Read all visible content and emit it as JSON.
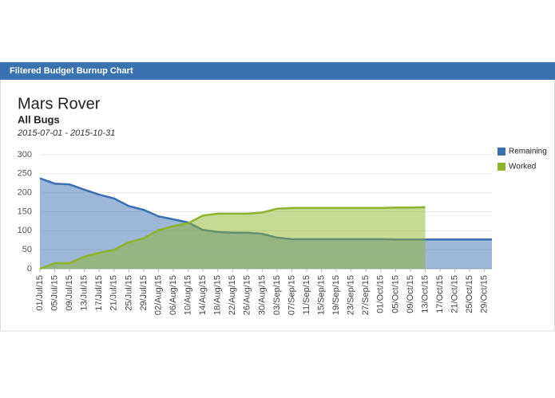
{
  "header": {
    "title": "Filtered Budget Burnup Chart"
  },
  "chart_data": {
    "type": "area",
    "title": "Mars Rover",
    "subtitle": "All Bugs",
    "date_range": "2015-07-01 - 2015-10-31",
    "x": [
      "2015-07-01",
      "2015-07-05",
      "2015-07-09",
      "2015-07-13",
      "2015-07-17",
      "2015-07-21",
      "2015-07-25",
      "2015-07-29",
      "2015-08-02",
      "2015-08-06",
      "2015-08-10",
      "2015-08-14",
      "2015-08-18",
      "2015-08-22",
      "2015-08-26",
      "2015-08-30",
      "2015-09-03",
      "2015-09-07",
      "2015-09-11",
      "2015-09-15",
      "2015-09-19",
      "2015-09-23",
      "2015-09-27",
      "2015-10-01",
      "2015-10-05",
      "2015-10-09",
      "2015-10-13",
      "2015-10-17",
      "2015-10-21",
      "2015-10-25",
      "2015-10-29",
      "2015-10-31"
    ],
    "series": [
      {
        "name": "Remaining",
        "color": "#3a6fb0",
        "values": [
          238,
          224,
          222,
          208,
          195,
          185,
          165,
          155,
          138,
          130,
          122,
          102,
          97,
          95,
          95,
          92,
          82,
          78,
          78,
          78,
          78,
          78,
          78,
          78,
          77,
          77,
          77,
          77,
          77,
          77,
          77,
          77
        ]
      },
      {
        "name": "Worked",
        "color": "#8db42c",
        "values": [
          0,
          15,
          15,
          32,
          42,
          50,
          70,
          80,
          102,
          112,
          120,
          140,
          145,
          145,
          145,
          148,
          158,
          160,
          160,
          160,
          160,
          160,
          160,
          160,
          161,
          161,
          162,
          null,
          null,
          null,
          null,
          null
        ]
      }
    ],
    "xlim": [
      "2015-07-01",
      "2015-10-31"
    ],
    "xticks": [
      {
        "value": "2015-07-01",
        "label": "01/Jul/15"
      },
      {
        "value": "2015-07-05",
        "label": "05/Jul/15"
      },
      {
        "value": "2015-07-09",
        "label": "09/Jul/15"
      },
      {
        "value": "2015-07-13",
        "label": "13/Jul/15"
      },
      {
        "value": "2015-07-17",
        "label": "17/Jul/15"
      },
      {
        "value": "2015-07-21",
        "label": "21/Jul/15"
      },
      {
        "value": "2015-07-25",
        "label": "25/Jul/15"
      },
      {
        "value": "2015-07-29",
        "label": "29/Jul/15"
      },
      {
        "value": "2015-08-02",
        "label": "02/Aug/15"
      },
      {
        "value": "2015-08-06",
        "label": "06/Aug/15"
      },
      {
        "value": "2015-08-10",
        "label": "10/Aug/15"
      },
      {
        "value": "2015-08-14",
        "label": "14/Aug/15"
      },
      {
        "value": "2015-08-18",
        "label": "18/Aug/15"
      },
      {
        "value": "2015-08-22",
        "label": "22/Aug/15"
      },
      {
        "value": "2015-08-26",
        "label": "26/Aug/15"
      },
      {
        "value": "2015-08-30",
        "label": "30/Aug/15"
      },
      {
        "value": "2015-09-03",
        "label": "03/Sep/15"
      },
      {
        "value": "2015-09-07",
        "label": "07/Sep/15"
      },
      {
        "value": "2015-09-11",
        "label": "11/Sep/15"
      },
      {
        "value": "2015-09-15",
        "label": "15/Sep/15"
      },
      {
        "value": "2015-09-19",
        "label": "19/Sep/15"
      },
      {
        "value": "2015-09-23",
        "label": "23/Sep/15"
      },
      {
        "value": "2015-09-27",
        "label": "27/Sep/15"
      },
      {
        "value": "2015-10-01",
        "label": "01/Oct/15"
      },
      {
        "value": "2015-10-05",
        "label": "05/Oct/15"
      },
      {
        "value": "2015-10-09",
        "label": "09/Oct/15"
      },
      {
        "value": "2015-10-13",
        "label": "13/Oct/15"
      },
      {
        "value": "2015-10-17",
        "label": "17/Oct/15"
      },
      {
        "value": "2015-10-21",
        "label": "21/Oct/15"
      },
      {
        "value": "2015-10-25",
        "label": "25/Oct/15"
      },
      {
        "value": "2015-10-29",
        "label": "29/Oct/15"
      }
    ],
    "ylim": [
      0,
      300
    ],
    "yticks": [
      0,
      50,
      100,
      150,
      200,
      250,
      300
    ],
    "grid": true,
    "legend": "right"
  }
}
